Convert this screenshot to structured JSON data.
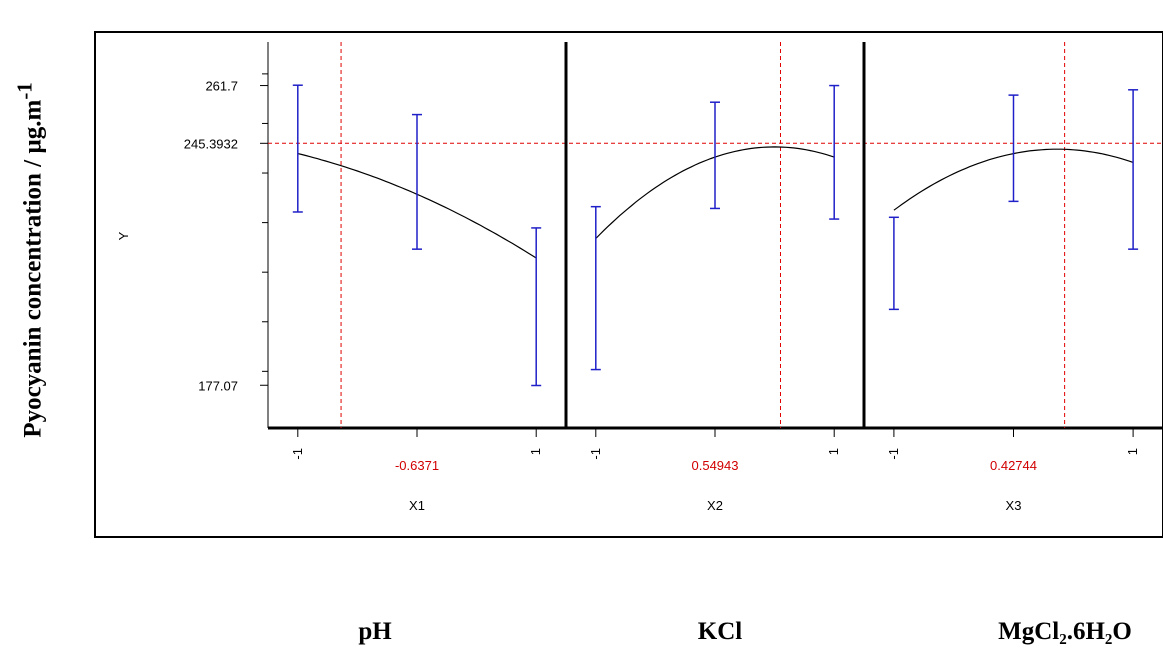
{
  "chart_data": {
    "type": "line",
    "title": "",
    "y_axis_title": "Pyocyanin concentration / µg.m",
    "y_axis_title_suffix": "-1",
    "y_inner_label": "Y",
    "ylim": [
      165.0,
      274.0
    ],
    "y_ticks": [
      {
        "value": 261.7,
        "label": "261.7",
        "color": "#000000"
      },
      {
        "value": 245.3932,
        "label": "245.3932",
        "color": "#d10000"
      },
      {
        "value": 177.07,
        "label": "177.07",
        "color": "#000000"
      }
    ],
    "optimum_y": 245.3932,
    "xlim": [
      -1.25,
      1.25
    ],
    "panels": [
      {
        "factor": "X1",
        "factor_name": "pH",
        "x_ticks": [
          "-1",
          "1"
        ],
        "optimum_x": -0.6371,
        "optimum_label": "-0.6371",
        "curve": [
          [
            -1,
            242.5
          ],
          [
            -0.6371,
            245.39
          ],
          [
            0,
            231.0
          ],
          [
            1,
            213.0
          ]
        ],
        "points": [
          {
            "x": -1,
            "mean": 242.5,
            "low": 226.0,
            "high": 261.8
          },
          {
            "x": 0,
            "mean": 231.0,
            "low": 215.5,
            "high": 253.5
          },
          {
            "x": 1,
            "mean": 213.0,
            "low": 177.0,
            "high": 221.5
          }
        ]
      },
      {
        "factor": "X2",
        "factor_name": "KCl",
        "factor_name_parts": [
          [
            "KCl",
            ""
          ]
        ],
        "x_ticks": [
          "-1",
          "1"
        ],
        "optimum_x": 0.54943,
        "optimum_label": "0.54943",
        "curve": [
          [
            -1,
            218.5
          ],
          [
            0,
            241.5
          ],
          [
            0.54943,
            245.39
          ],
          [
            1,
            241.5
          ]
        ],
        "points": [
          {
            "x": -1,
            "mean": 218.5,
            "low": 181.5,
            "high": 227.5
          },
          {
            "x": 0,
            "mean": 241.5,
            "low": 227.0,
            "high": 257.0
          },
          {
            "x": 1,
            "mean": 241.5,
            "low": 224.0,
            "high": 261.7
          }
        ]
      },
      {
        "factor": "X3",
        "factor_name": "MgCl₂.6H₂O",
        "x_ticks": [
          "-1",
          "1"
        ],
        "optimum_x": 0.42744,
        "optimum_label": "0.42744",
        "curve": [
          [
            -1,
            226.5
          ],
          [
            0,
            242.5
          ],
          [
            0.42744,
            245.39
          ],
          [
            1,
            240.0
          ]
        ],
        "points": [
          {
            "x": -1,
            "mean": 226.5,
            "low": 198.5,
            "high": 224.5
          },
          {
            "x": 0,
            "mean": 242.5,
            "low": 229.0,
            "high": 259.0
          },
          {
            "x": 1,
            "mean": 240.0,
            "low": 215.5,
            "high": 260.5
          }
        ]
      }
    ],
    "colors": {
      "curve": "#000000",
      "error_bar": "#2020c8",
      "reference_line": "#e00000",
      "highlight_text": "#d10000"
    }
  }
}
